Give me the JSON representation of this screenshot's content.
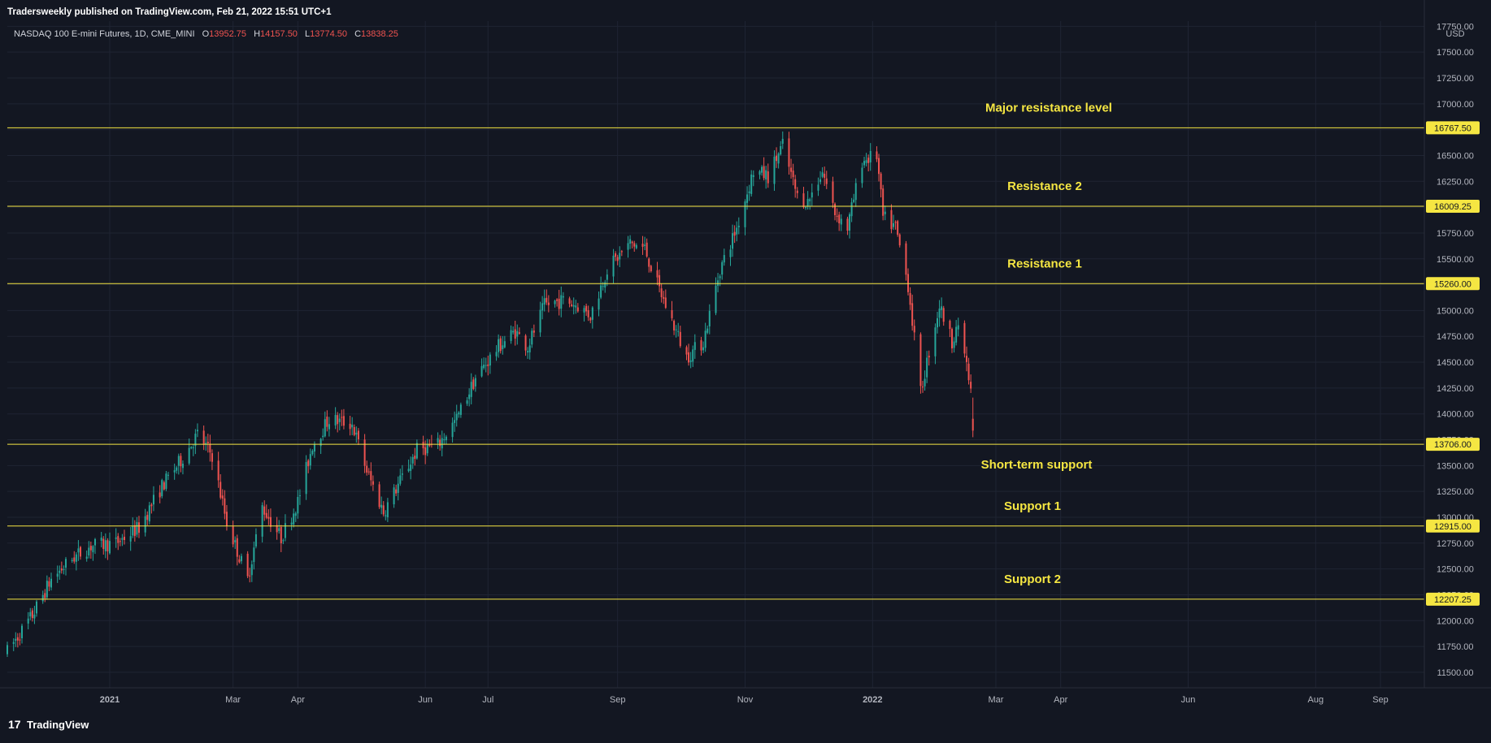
{
  "publish_bar": {
    "text": "Tradersweekly published on TradingView.com, Feb 21, 2022 15:51 UTC+1"
  },
  "legend": {
    "symbol": "NASDAQ 100 E-mini Futures, 1D, CME_MINI",
    "open_label": "O",
    "open_value": "13952.75",
    "high_label": "H",
    "high_value": "14157.50",
    "low_label": "L",
    "low_value": "13774.50",
    "close_label": "C",
    "close_value": "13838.25"
  },
  "footer": {
    "brand": "TradingView",
    "logo_text": "17"
  },
  "colors": {
    "background": "#131722",
    "grid": "#1f2433",
    "up": "#26a69a",
    "down": "#ef5350",
    "level_line": "#f5e642",
    "level_label_bg": "#f5e642",
    "level_label_text": "#131722",
    "annotation": "#f5e642",
    "axis_text": "#b2b5be",
    "legend_symbol": "#d1d4dc",
    "legend_value": "#ef5350"
  },
  "chart_data": {
    "type": "candlestick",
    "title": "NASDAQ 100 E-mini Futures, 1D, CME_MINI",
    "currency": "USD",
    "y_range": [
      11350,
      17800
    ],
    "y_ticks": [
      11500,
      11750,
      12000,
      12250,
      12500,
      12750,
      13000,
      13250,
      13500,
      13750,
      14000,
      14250,
      14500,
      14750,
      15000,
      15250,
      15500,
      15750,
      16000,
      16250,
      16500,
      16750,
      17000,
      17250,
      17500,
      17750
    ],
    "x_range": [
      "2020-11-13",
      "2022-09-22"
    ],
    "x_ticks": [
      {
        "date": "2021-01-01",
        "label": "2021"
      },
      {
        "date": "2021-03-01",
        "label": "Mar"
      },
      {
        "date": "2021-04-01",
        "label": "Apr"
      },
      {
        "date": "2021-06-01",
        "label": "Jun"
      },
      {
        "date": "2021-07-01",
        "label": "Jul"
      },
      {
        "date": "2021-09-01",
        "label": "Sep"
      },
      {
        "date": "2021-11-01",
        "label": "Nov"
      },
      {
        "date": "2022-01-01",
        "label": "2022"
      },
      {
        "date": "2022-03-01",
        "label": "Mar"
      },
      {
        "date": "2022-04-01",
        "label": "Apr"
      },
      {
        "date": "2022-06-01",
        "label": "Jun"
      },
      {
        "date": "2022-08-01",
        "label": "Aug"
      },
      {
        "date": "2022-09-01",
        "label": "Sep"
      }
    ],
    "levels": [
      {
        "value": 16767.5,
        "label": "16767.50",
        "annotation": "Major resistance level"
      },
      {
        "value": 16009.25,
        "label": "16009.25",
        "annotation": "Resistance 2"
      },
      {
        "value": 15260.0,
        "label": "15260.00",
        "annotation": "Resistance 1"
      },
      {
        "value": 13706.0,
        "label": "13706.00",
        "annotation": "Short-term support"
      },
      {
        "value": 12915.0,
        "label": "12915.00",
        "annotation": "Support 1"
      },
      {
        "value": 12207.25,
        "label": "12207.25",
        "annotation": "Support 2"
      }
    ],
    "close_path": [
      [
        "2020-11-13",
        11700
      ],
      [
        "2020-11-25",
        12050
      ],
      [
        "2020-12-04",
        12400
      ],
      [
        "2020-12-14",
        12600
      ],
      [
        "2020-12-23",
        12720
      ],
      [
        "2021-01-04",
        12750
      ],
      [
        "2021-01-15",
        12900
      ],
      [
        "2021-01-26",
        13300
      ],
      [
        "2021-02-04",
        13550
      ],
      [
        "2021-02-12",
        13800
      ],
      [
        "2021-02-19",
        13600
      ],
      [
        "2021-02-26",
        12950
      ],
      [
        "2021-03-08",
        12400
      ],
      [
        "2021-03-15",
        13100
      ],
      [
        "2021-03-24",
        12800
      ],
      [
        "2021-04-01",
        13150
      ],
      [
        "2021-04-08",
        13700
      ],
      [
        "2021-04-16",
        13950
      ],
      [
        "2021-04-27",
        13900
      ],
      [
        "2021-05-04",
        13450
      ],
      [
        "2021-05-12",
        13050
      ],
      [
        "2021-05-20",
        13350
      ],
      [
        "2021-05-28",
        13650
      ],
      [
        "2021-06-07",
        13700
      ],
      [
        "2021-06-16",
        13950
      ],
      [
        "2021-06-25",
        14350
      ],
      [
        "2021-07-06",
        14650
      ],
      [
        "2021-07-14",
        14800
      ],
      [
        "2021-07-20",
        14650
      ],
      [
        "2021-07-28",
        15050
      ],
      [
        "2021-08-06",
        15100
      ],
      [
        "2021-08-13",
        15050
      ],
      [
        "2021-08-19",
        14950
      ],
      [
        "2021-08-27",
        15400
      ],
      [
        "2021-09-07",
        15650
      ],
      [
        "2021-09-14",
        15600
      ],
      [
        "2021-09-20",
        15250
      ],
      [
        "2021-09-28",
        14850
      ],
      [
        "2021-10-04",
        14550
      ],
      [
        "2021-10-12",
        14700
      ],
      [
        "2021-10-20",
        15400
      ],
      [
        "2021-10-28",
        15800
      ],
      [
        "2021-11-05",
        16350
      ],
      [
        "2021-11-12",
        16300
      ],
      [
        "2021-11-19",
        16600
      ],
      [
        "2021-11-26",
        16100
      ],
      [
        "2021-12-01",
        16050
      ],
      [
        "2021-12-08",
        16350
      ],
      [
        "2021-12-14",
        15950
      ],
      [
        "2021-12-20",
        15800
      ],
      [
        "2021-12-27",
        16450
      ],
      [
        "2022-01-03",
        16500
      ],
      [
        "2022-01-06",
        15900
      ],
      [
        "2022-01-12",
        15800
      ],
      [
        "2022-01-18",
        15250
      ],
      [
        "2022-01-24",
        14200
      ],
      [
        "2022-01-28",
        14600
      ],
      [
        "2022-02-02",
        15050
      ],
      [
        "2022-02-08",
        14700
      ],
      [
        "2022-02-10",
        14850
      ],
      [
        "2022-02-14",
        14600
      ],
      [
        "2022-02-17",
        14200
      ],
      [
        "2022-02-18",
        13838.25
      ]
    ]
  }
}
